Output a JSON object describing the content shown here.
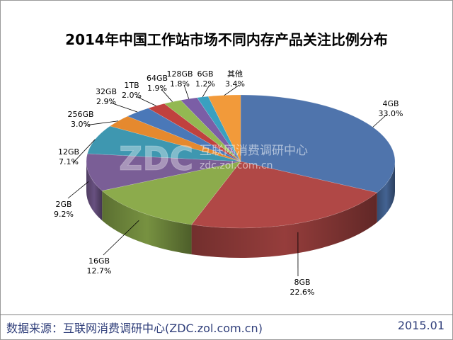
{
  "chart_data": {
    "type": "pie",
    "title": "2014年中国工作站市场不同内存产品关注比例分布",
    "slices": [
      {
        "name": "4GB",
        "value": 33.0,
        "label": "33.0%",
        "color": "#4f74ac"
      },
      {
        "name": "8GB",
        "value": 22.6,
        "label": "22.6%",
        "color": "#b04846"
      },
      {
        "name": "16GB",
        "value": 12.7,
        "label": "12.7%",
        "color": "#8cab4c"
      },
      {
        "name": "2GB",
        "value": 9.2,
        "label": "9.2%",
        "color": "#7a5e96"
      },
      {
        "name": "12GB",
        "value": 7.1,
        "label": "7.1%",
        "color": "#3e97b0"
      },
      {
        "name": "256GB",
        "value": 3.0,
        "label": "3.0%",
        "color": "#e5892e"
      },
      {
        "name": "32GB",
        "value": 2.9,
        "label": "2.9%",
        "color": "#4a78b8"
      },
      {
        "name": "1TB",
        "value": 2.0,
        "label": "2.0%",
        "color": "#c0413e"
      },
      {
        "name": "64GB",
        "value": 1.9,
        "label": "1.9%",
        "color": "#93b852"
      },
      {
        "name": "128GB",
        "value": 1.8,
        "label": "1.8%",
        "color": "#7b5ea6"
      },
      {
        "name": "6GB",
        "value": 1.2,
        "label": "1.2%",
        "color": "#3aa0c0"
      },
      {
        "name": "其他",
        "value": 3.4,
        "label": "3.4%",
        "color": "#f29a3a"
      }
    ],
    "labels_outside": true,
    "legend": "none",
    "style": "3d-tilted"
  },
  "watermark": {
    "logo": "ZDC",
    "name": "互联网消费调研中心",
    "url": "zdc.zol.com.cn"
  },
  "footer": {
    "source": "数据来源：互联网消费调研中心(ZDC.zol.com.cn)",
    "date": "2015.01"
  }
}
